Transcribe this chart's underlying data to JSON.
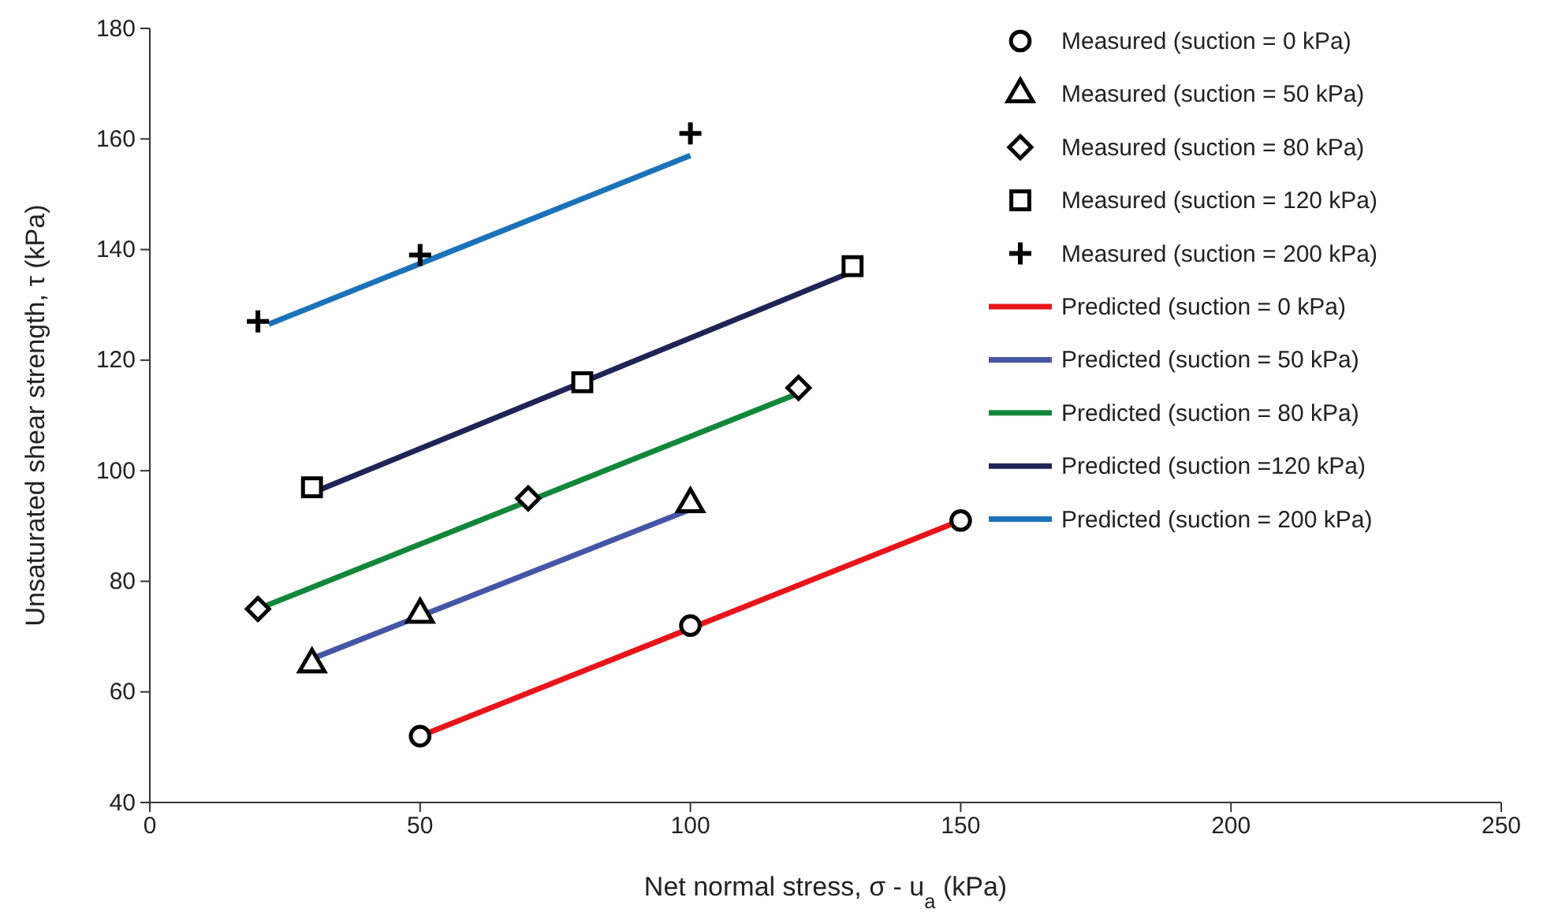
{
  "chart_data": {
    "type": "scatter",
    "xlabel": "Net normal stress, σ - u$_{a}$ (kPa)",
    "ylabel": "Unsaturated shear strength, τ (kPa)",
    "xlim": [
      0,
      250
    ],
    "xticks": [
      0,
      50,
      100,
      150,
      200,
      250
    ],
    "ylim": [
      40,
      180
    ],
    "yticks": [
      40,
      60,
      80,
      100,
      120,
      140,
      160,
      180
    ],
    "grid": false,
    "legend": "top right",
    "series": [
      {
        "name": "Measured (suction = 0 kPa)",
        "marker": "circle",
        "color": "#000000",
        "x": [
          50,
          100,
          150
        ],
        "values": [
          52,
          72,
          91
        ]
      },
      {
        "name": "Measured (suction = 50 kPa)",
        "marker": "triangle",
        "color": "#000000",
        "x": [
          30,
          50,
          100
        ],
        "values": [
          65,
          74,
          94
        ]
      },
      {
        "name": "Measured (suction = 80 kPa)",
        "marker": "diamond",
        "color": "#000000",
        "x": [
          20,
          70,
          120
        ],
        "values": [
          75,
          95,
          115
        ]
      },
      {
        "name": "Measured (suction = 120 kPa)",
        "marker": "square",
        "color": "#000000",
        "x": [
          30,
          80,
          130
        ],
        "values": [
          97,
          116,
          137
        ]
      },
      {
        "name": "Measured (suction = 200 kPa)",
        "marker": "cross",
        "color": "#000000",
        "x": [
          20,
          50,
          100
        ],
        "values": [
          127,
          139,
          161
        ]
      },
      {
        "name": "Predicted (suction = 0 kPa)",
        "type": "line",
        "marker": "none",
        "color": "#e8141b",
        "x": [
          50,
          150
        ],
        "values": [
          52,
          91
        ]
      },
      {
        "name": "Predicted (suction = 50 kPa)",
        "type": "line",
        "marker": "none",
        "color": "#4556a6",
        "x": [
          30,
          100
        ],
        "values": [
          66,
          93
        ]
      },
      {
        "name": "Predicted (suction = 80 kPa)",
        "type": "line",
        "marker": "none",
        "color": "#12873a",
        "x": [
          20,
          120
        ],
        "values": [
          75,
          114
        ]
      },
      {
        "name": "Predicted (suction =120 kPa)",
        "type": "line",
        "marker": "none",
        "color": "#1f2456",
        "x": [
          30,
          130
        ],
        "values": [
          96,
          136
        ]
      },
      {
        "name": "Predicted (suction = 200 kPa)",
        "type": "line",
        "marker": "none",
        "color": "#1b72b8",
        "x": [
          22,
          100
        ],
        "values": [
          126.5,
          157
        ]
      }
    ]
  }
}
